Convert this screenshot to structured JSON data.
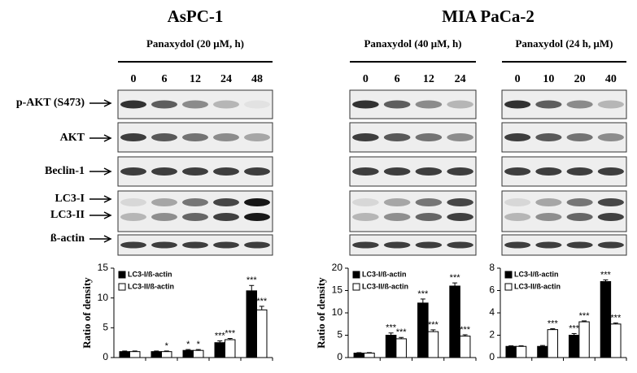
{
  "titles": [
    "AsPC-1",
    "MIA PaCa-2"
  ],
  "panels": [
    {
      "treatment": "Panaxydol  (20 μM, h)",
      "lanes": [
        "0",
        "6",
        "12",
        "24",
        "48"
      ]
    },
    {
      "treatment": "Panaxydol  (40 μM, h)",
      "lanes": [
        "0",
        "6",
        "12",
        "24"
      ]
    },
    {
      "treatment": "Panaxydol  (24 h, μM)",
      "lanes": [
        "0",
        "10",
        "20",
        "40"
      ]
    }
  ],
  "row_labels": [
    "p-AKT (S473)",
    "AKT",
    "Beclin-1",
    "LC3-I",
    "LC3-II",
    "ß-actin"
  ],
  "chart_data": [
    {
      "type": "bar",
      "ylabel": "Ratio of density",
      "categories": [
        null,
        null,
        null,
        null,
        null
      ],
      "ylim": [
        0,
        15
      ],
      "yticks": [
        0,
        5,
        10,
        15
      ],
      "series": [
        {
          "name": "LC3-I/ß-actin",
          "color": "#000000",
          "values": [
            1,
            1,
            1.2,
            2.5,
            11.2
          ],
          "errors": [
            0.1,
            0.1,
            0.15,
            0.3,
            0.9
          ],
          "annotations": [
            null,
            null,
            "*",
            "***",
            "***"
          ]
        },
        {
          "name": "LC3-II/ß-actin",
          "color": "#ffffff",
          "values": [
            1,
            1,
            1.2,
            3,
            8
          ],
          "errors": [
            0.1,
            0.1,
            0.15,
            0.2,
            0.6
          ],
          "annotations": [
            null,
            "*",
            "*",
            "***",
            "***"
          ]
        }
      ]
    },
    {
      "type": "bar",
      "ylabel": "Ratio of density",
      "categories": [
        null,
        null,
        null,
        null
      ],
      "ylim": [
        0,
        20
      ],
      "yticks": [
        0,
        5,
        10,
        15,
        20
      ],
      "series": [
        {
          "name": "LC3-I/ß-actin",
          "color": "#000000",
          "values": [
            1,
            5,
            12.2,
            16
          ],
          "errors": [
            0.1,
            0.5,
            0.9,
            0.7
          ],
          "annotations": [
            null,
            "***",
            "***",
            "***"
          ]
        },
        {
          "name": "LC3-II/ß-actin",
          "color": "#ffffff",
          "values": [
            1,
            4.2,
            5.8,
            4.8
          ],
          "errors": [
            0.1,
            0.3,
            0.4,
            0.3
          ],
          "annotations": [
            null,
            "***",
            "***",
            "***"
          ]
        }
      ]
    },
    {
      "type": "bar",
      "categories": [
        null,
        null,
        null,
        null
      ],
      "ylim": [
        0,
        8
      ],
      "yticks": [
        0,
        2,
        4,
        6,
        8
      ],
      "series": [
        {
          "name": "LC3-I/ß-actin",
          "color": "#000000",
          "values": [
            1,
            1,
            2,
            6.8
          ],
          "errors": [
            0.05,
            0.08,
            0.15,
            0.15
          ],
          "annotations": [
            null,
            null,
            "***",
            "***"
          ]
        },
        {
          "name": "LC3-II/ß-actin",
          "color": "#ffffff",
          "values": [
            1,
            2.5,
            3.2,
            3
          ],
          "errors": [
            0.05,
            0.08,
            0.08,
            0.1
          ],
          "annotations": [
            null,
            "***",
            "***",
            "***"
          ]
        }
      ]
    }
  ]
}
